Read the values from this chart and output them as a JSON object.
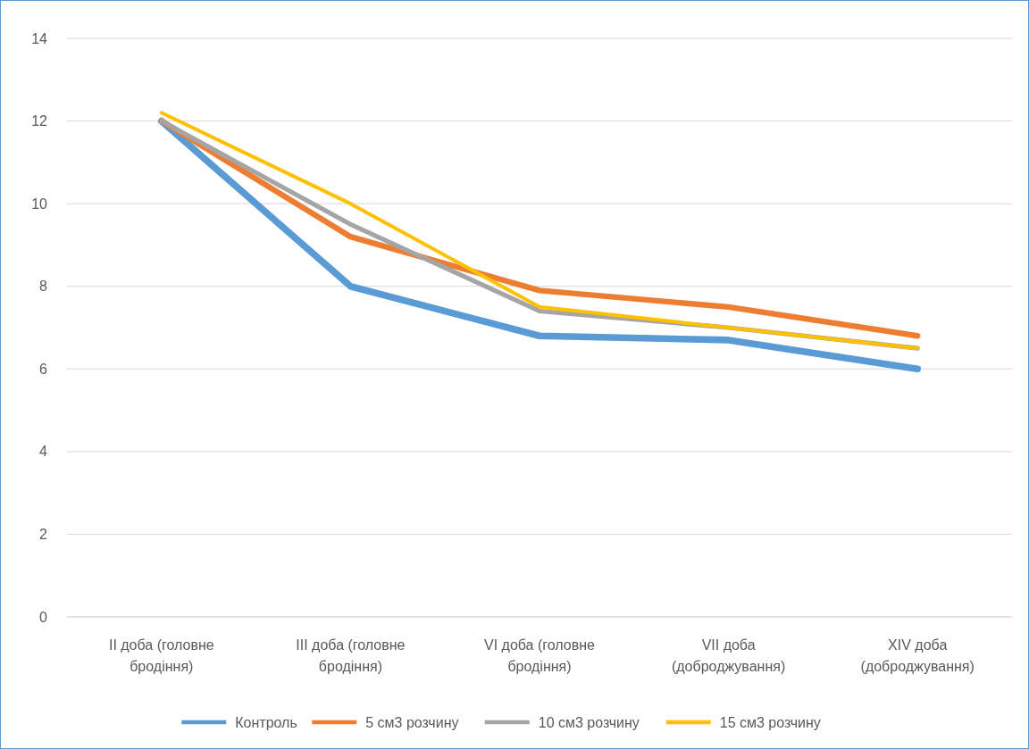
{
  "chart_data": {
    "type": "line",
    "categories": [
      "II доба (головне бродіння)",
      "III доба (головне бродіння)",
      "VI доба (головне бродіння)",
      "VII доба (доброджування)",
      "XIV доба (доброджування)"
    ],
    "series": [
      {
        "name": "Контроль",
        "color": "#5b9bd5",
        "values": [
          12,
          8,
          6.8,
          6.7,
          6
        ]
      },
      {
        "name": "5 см3 розчину",
        "color": "#ed7d31",
        "values": [
          12,
          9.2,
          7.9,
          7.5,
          6.8
        ]
      },
      {
        "name": "10 см3 розчину",
        "color": "#a5a5a5",
        "values": [
          12,
          9.5,
          7.4,
          7,
          6.5
        ]
      },
      {
        "name": "15 см3 розчину",
        "color": "#ffc000",
        "values": [
          12.2,
          10,
          7.5,
          7,
          6.5
        ]
      }
    ],
    "ylim": [
      0,
      14
    ],
    "yticks": [
      0,
      2,
      4,
      6,
      8,
      10,
      12,
      14
    ],
    "grid": "y",
    "legend": "bottom",
    "marker": "none",
    "line_style": "solid"
  }
}
